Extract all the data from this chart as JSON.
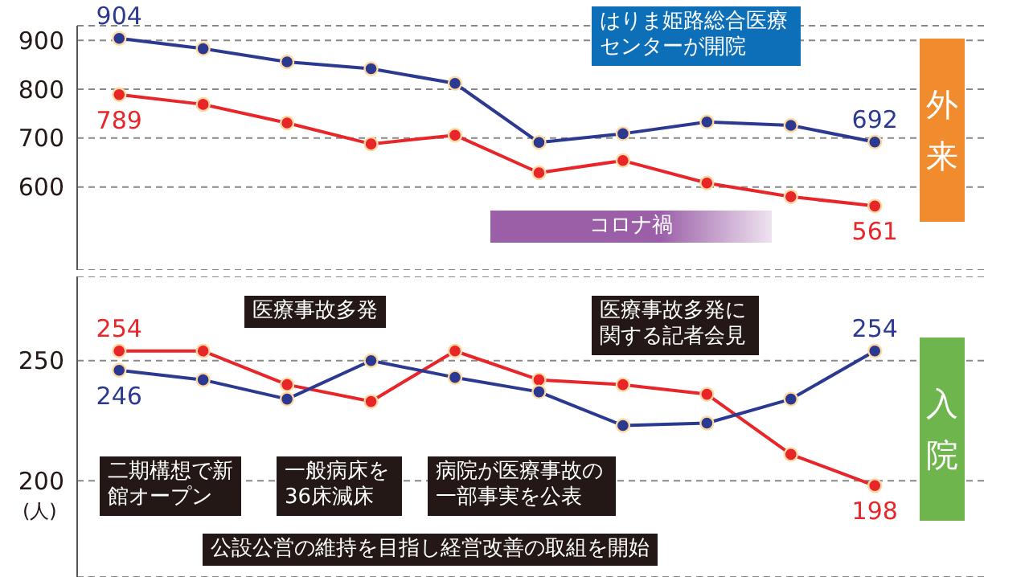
{
  "chart_data": [
    {
      "type": "line",
      "categories": [
        null,
        null,
        null,
        null,
        null,
        null,
        null,
        null,
        null,
        null
      ],
      "series": [
        {
          "color": "#2b3990",
          "values": [
            904,
            883,
            856,
            842,
            812,
            691,
            709,
            733,
            726,
            692
          ],
          "value_labels": [
            "904",
            null,
            null,
            null,
            null,
            null,
            null,
            null,
            null,
            "692"
          ]
        },
        {
          "color": "#e8262a",
          "values": [
            789,
            769,
            731,
            688,
            706,
            629,
            654,
            608,
            580,
            561
          ],
          "value_labels": [
            "789",
            null,
            null,
            null,
            null,
            null,
            null,
            null,
            null,
            "561"
          ]
        }
      ],
      "ylim": [
        430,
        930
      ],
      "yticks": [
        600,
        700,
        800,
        900
      ],
      "grid": "y",
      "legend": false,
      "tick_labels": "y",
      "marker": "circle",
      "line_style": "solid",
      "annotations": [
        "はりま姫路総合医療センターが開院",
        "コロナ禍",
        "外来"
      ]
    },
    {
      "type": "line",
      "categories": [
        null,
        null,
        null,
        null,
        null,
        null,
        null,
        null,
        null,
        null
      ],
      "series": [
        {
          "color": "#e8262a",
          "values": [
            254,
            254,
            240,
            233,
            254,
            242,
            240,
            236,
            211,
            198
          ],
          "value_labels": [
            "254",
            null,
            null,
            null,
            null,
            null,
            null,
            null,
            null,
            "198"
          ]
        },
        {
          "color": "#2b3990",
          "values": [
            246,
            242,
            234,
            250,
            243,
            237,
            223,
            224,
            234,
            254
          ],
          "value_labels": [
            "246",
            null,
            null,
            null,
            null,
            null,
            null,
            null,
            null,
            "254"
          ]
        }
      ],
      "ylim": [
        160,
        285
      ],
      "yticks": [
        200,
        250
      ],
      "grid": "y",
      "legend": false,
      "tick_labels": "y",
      "marker": "circle",
      "line_style": "solid",
      "ylabel": "(人)",
      "annotations": [
        "医療事故多発",
        "医療事故多発に関する記者会見",
        "二期構想で新館オープン",
        "一般病床を36床減床",
        "病院が医療事故の一部事実を公表",
        "公設公営の維持を目指し経営改善の取組を開始",
        "入院"
      ]
    }
  ]
}
